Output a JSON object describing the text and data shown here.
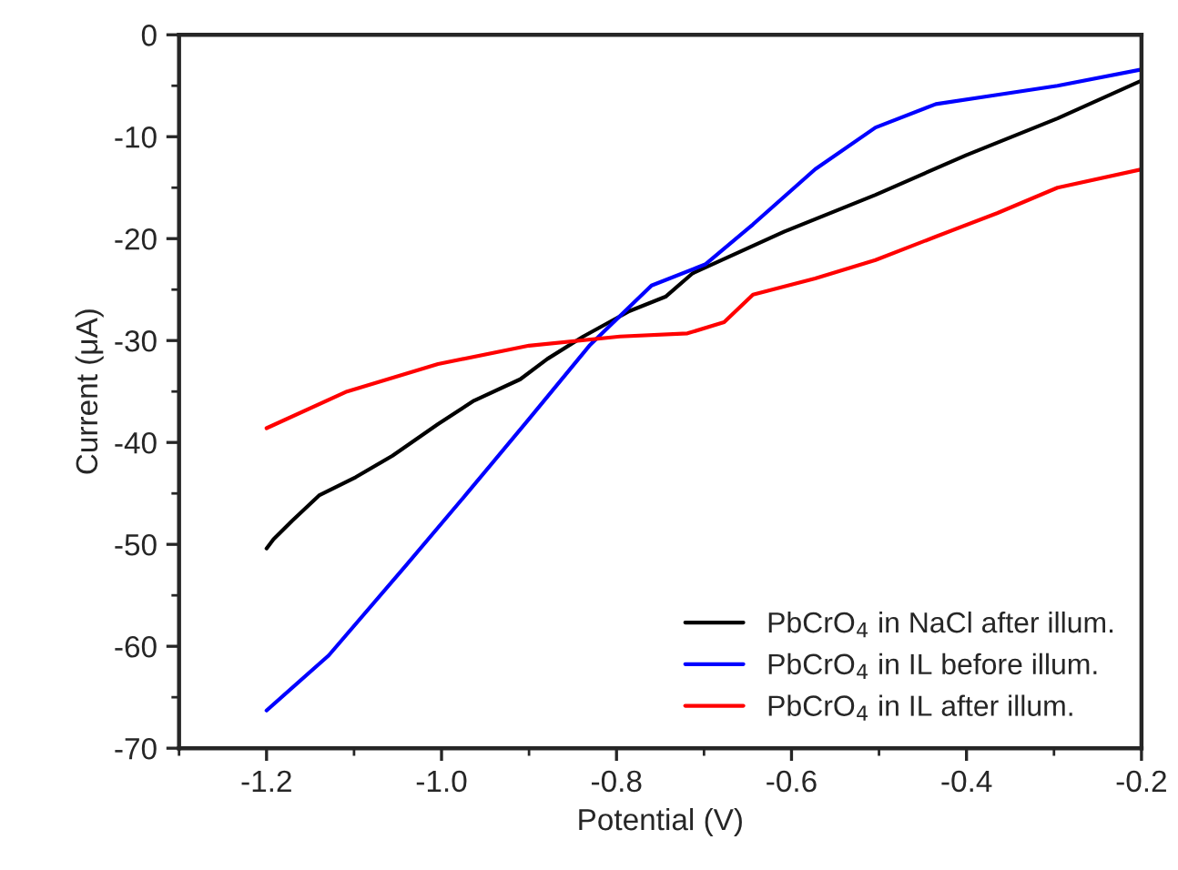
{
  "chart_data": {
    "type": "line",
    "xlabel": "Potential (V)",
    "ylabel": "Current (μA)",
    "xlim": [
      -1.3,
      -0.2
    ],
    "xticks": [
      {
        "value": -1.2,
        "label": "-1.2"
      },
      {
        "value": -1.0,
        "label": "-1.0"
      },
      {
        "value": -0.8,
        "label": "-0.8"
      },
      {
        "value": -0.6,
        "label": "-0.6"
      },
      {
        "value": -0.4,
        "label": "-0.4"
      },
      {
        "value": -0.2,
        "label": "-0.2"
      }
    ],
    "ylim": [
      -70,
      0
    ],
    "yticks": [
      {
        "value": -70,
        "label": "-70"
      },
      {
        "value": -60,
        "label": "-60"
      },
      {
        "value": -50,
        "label": "-50"
      },
      {
        "value": -40,
        "label": "-40"
      },
      {
        "value": -30,
        "label": "-30"
      },
      {
        "value": -20,
        "label": "-20"
      },
      {
        "value": -10,
        "label": "-10"
      },
      0
    ],
    "grid": false,
    "legend": "bottom right",
    "marker": "none",
    "line_style": "solid",
    "series": [
      {
        "name": "PbCrO$_{4}$ in NaCl after illum.",
        "color": "#000000",
        "x": [
          -1.2,
          -1.192,
          -1.171,
          -1.14,
          -1.098,
          -1.056,
          -1.004,
          -0.963,
          -0.91,
          -0.879,
          -0.838,
          -0.785,
          -0.744,
          -0.713,
          -0.608,
          -0.504,
          -0.4,
          -0.296,
          -0.2
        ],
        "values": [
          -50.4,
          -49.5,
          -47.7,
          -45.2,
          -43.4,
          -41.3,
          -38.2,
          -35.9,
          -33.8,
          -31.8,
          -29.6,
          -27.1,
          -25.7,
          -23.4,
          -19.3,
          -15.7,
          -11.8,
          -8.2,
          -4.5
        ]
      },
      {
        "name": "PbCrO$_{4}$ in IL before illum.",
        "color": "#0000ff",
        "x": [
          -1.2,
          -1.129,
          -1.04,
          -0.969,
          -0.9,
          -0.831,
          -0.76,
          -0.698,
          -0.644,
          -0.573,
          -0.504,
          -0.435,
          -0.365,
          -0.296,
          -0.2
        ],
        "values": [
          -66.3,
          -60.9,
          -52,
          -44.8,
          -37.7,
          -30.5,
          -24.6,
          -22.5,
          -18.6,
          -13.2,
          -9.1,
          -6.8,
          -5.9,
          -5,
          -3.4
        ]
      },
      {
        "name": "PbCrO$_{4}$ in IL after illum.",
        "color": "#ff0000",
        "x": [
          -1.2,
          -1.108,
          -1.004,
          -0.9,
          -0.796,
          -0.719,
          -0.677,
          -0.644,
          -0.573,
          -0.504,
          -0.435,
          -0.365,
          -0.296,
          -0.2
        ],
        "values": [
          -38.6,
          -35,
          -32.3,
          -30.5,
          -29.6,
          -29.3,
          -28.2,
          -25.5,
          -23.9,
          -22.1,
          -19.8,
          -17.5,
          -15,
          -13.2
        ]
      }
    ]
  }
}
